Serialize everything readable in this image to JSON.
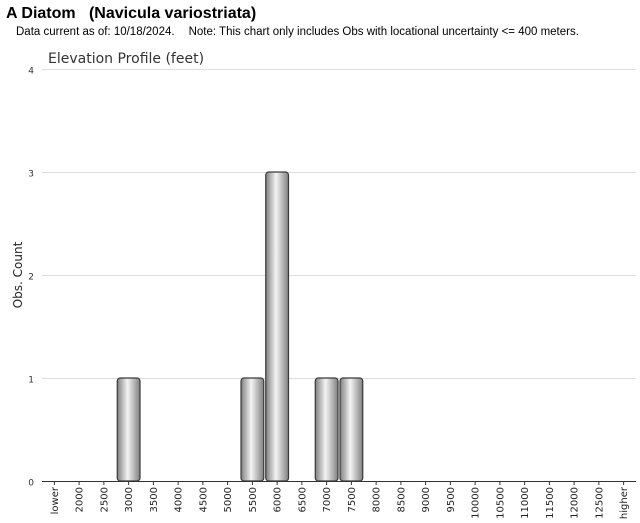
{
  "header": {
    "title": "A Diatom   (Navicula variostriata)",
    "data_current_label": "Data current as of:",
    "data_current_date": "10/18/2024.",
    "note": "Note: This chart only includes Obs with locational uncertainty <= 400 meters."
  },
  "chart_data": {
    "type": "bar",
    "title": "Elevation Profile (feet)",
    "xlabel": "",
    "ylabel": "Obs. Count",
    "ylim": [
      0,
      4
    ],
    "yticks": [
      "0",
      "1",
      "2",
      "3",
      "4"
    ],
    "grid": true,
    "legend": "none",
    "bar_color": "#a9a9a9",
    "categories": [
      "lower",
      "2000",
      "2500",
      "3000",
      "3500",
      "4000",
      "4500",
      "5000",
      "5500",
      "6000",
      "6500",
      "7000",
      "7500",
      "8000",
      "8500",
      "9000",
      "9500",
      "10000",
      "10500",
      "11000",
      "11500",
      "12000",
      "12500",
      "higher"
    ],
    "values": [
      0,
      0,
      0,
      1,
      0,
      0,
      0,
      0,
      1,
      3,
      0,
      1,
      1,
      0,
      0,
      0,
      0,
      0,
      0,
      0,
      0,
      0,
      0,
      0
    ]
  }
}
